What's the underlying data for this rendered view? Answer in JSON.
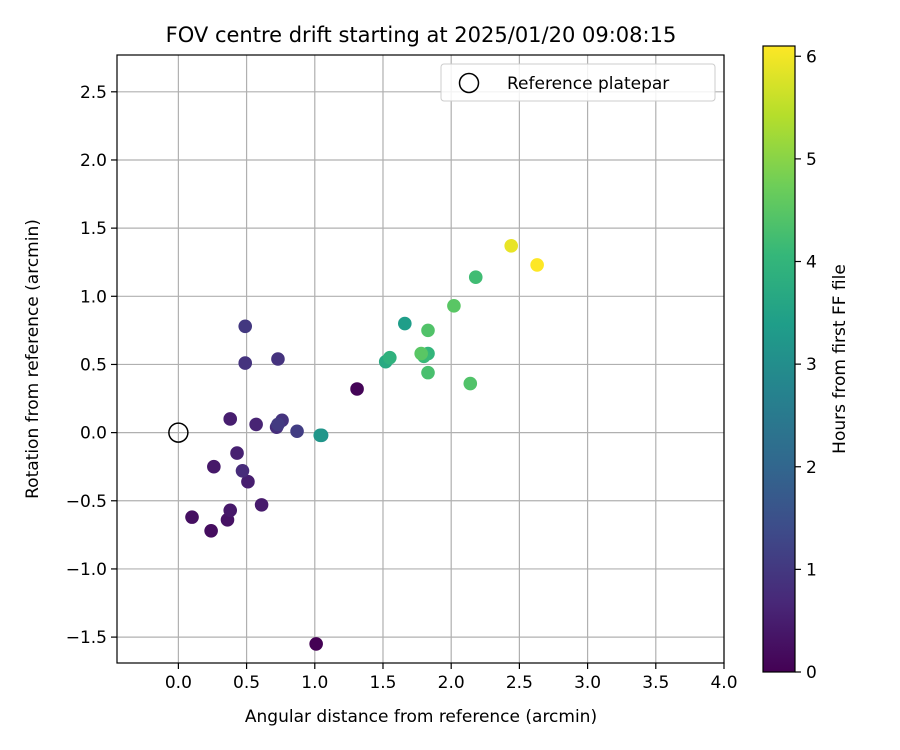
{
  "chart_data": {
    "type": "scatter",
    "title": "FOV centre drift starting at 2025/01/20 09:08:15",
    "xlabel": "Angular distance from reference (arcmin)",
    "ylabel": "Rotation from reference (arcmin)",
    "xlim": [
      -0.45,
      4.0
    ],
    "ylim": [
      -1.69,
      2.77
    ],
    "xticks": [
      "0.0",
      "0.5",
      "1.0",
      "1.5",
      "2.0",
      "2.5",
      "3.0",
      "3.5",
      "4.0"
    ],
    "xtick_values": [
      0.0,
      0.5,
      1.0,
      1.5,
      2.0,
      2.5,
      3.0,
      3.5,
      4.0
    ],
    "yticks": [
      "−1.5",
      "−1.0",
      "−0.5",
      "0.0",
      "0.5",
      "1.0",
      "1.5",
      "2.0",
      "2.5"
    ],
    "ytick_values": [
      -1.5,
      -1.0,
      -0.5,
      0.0,
      0.5,
      1.0,
      1.5,
      2.0,
      2.5
    ],
    "grid": true,
    "legend": {
      "position": "top-right",
      "label": "Reference platepar"
    },
    "reference": {
      "x": 0.0,
      "y": 0.0
    },
    "colorbar": {
      "label": "Hours from first FF file",
      "colormap": "viridis",
      "range": [
        0,
        6.1
      ],
      "ticks": [
        "0",
        "1",
        "2",
        "3",
        "4",
        "5",
        "6"
      ],
      "tick_values": [
        0,
        1,
        2,
        3,
        4,
        5,
        6
      ]
    },
    "points": [
      {
        "x": 1.01,
        "y": -1.55,
        "h": 0.0
      },
      {
        "x": 1.31,
        "y": 0.32,
        "h": 0.05
      },
      {
        "x": 0.24,
        "y": -0.72,
        "h": 0.2
      },
      {
        "x": 0.1,
        "y": -0.62,
        "h": 0.25
      },
      {
        "x": 0.36,
        "y": -0.64,
        "h": 0.3
      },
      {
        "x": 0.38,
        "y": -0.57,
        "h": 0.4
      },
      {
        "x": 0.26,
        "y": -0.25,
        "h": 0.4
      },
      {
        "x": 0.61,
        "y": -0.53,
        "h": 0.45
      },
      {
        "x": 0.51,
        "y": -0.36,
        "h": 0.5
      },
      {
        "x": 0.43,
        "y": -0.15,
        "h": 0.55
      },
      {
        "x": 0.38,
        "y": 0.1,
        "h": 0.5
      },
      {
        "x": 0.57,
        "y": 0.06,
        "h": 0.6
      },
      {
        "x": 0.47,
        "y": -0.28,
        "h": 0.75
      },
      {
        "x": 0.72,
        "y": 0.04,
        "h": 0.8
      },
      {
        "x": 0.73,
        "y": 0.54,
        "h": 0.9
      },
      {
        "x": 0.49,
        "y": 0.51,
        "h": 0.9
      },
      {
        "x": 0.76,
        "y": 0.09,
        "h": 0.9
      },
      {
        "x": 0.49,
        "y": 0.78,
        "h": 1.0
      },
      {
        "x": 0.73,
        "y": 0.06,
        "h": 1.05
      },
      {
        "x": 0.87,
        "y": 0.01,
        "h": 1.1
      },
      {
        "x": 1.05,
        "y": -0.02,
        "h": 3.1
      },
      {
        "x": 1.04,
        "y": -0.02,
        "h": 3.2
      },
      {
        "x": 1.66,
        "y": 0.8,
        "h": 3.4
      },
      {
        "x": 1.52,
        "y": 0.52,
        "h": 3.7
      },
      {
        "x": 1.55,
        "y": 0.55,
        "h": 3.9
      },
      {
        "x": 1.83,
        "y": 0.58,
        "h": 4.0
      },
      {
        "x": 1.8,
        "y": 0.56,
        "h": 4.1
      },
      {
        "x": 2.18,
        "y": 1.14,
        "h": 4.2
      },
      {
        "x": 1.83,
        "y": 0.44,
        "h": 4.3
      },
      {
        "x": 1.83,
        "y": 0.75,
        "h": 4.4
      },
      {
        "x": 1.78,
        "y": 0.58,
        "h": 4.5
      },
      {
        "x": 2.02,
        "y": 0.93,
        "h": 4.5
      },
      {
        "x": 2.14,
        "y": 0.36,
        "h": 4.4
      },
      {
        "x": 2.44,
        "y": 1.37,
        "h": 5.9
      },
      {
        "x": 2.63,
        "y": 1.23,
        "h": 6.1
      }
    ]
  }
}
